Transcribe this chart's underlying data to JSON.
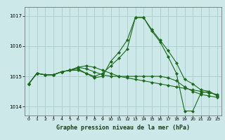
{
  "title": "Graphe pression niveau de la mer (hPa)",
  "background_color": "#cce8e8",
  "grid_color": "#aacccc",
  "line_color": "#1a6b1a",
  "xlim": [
    -0.5,
    23.5
  ],
  "ylim": [
    1013.7,
    1017.3
  ],
  "yticks": [
    1014,
    1015,
    1016,
    1017
  ],
  "xticks": [
    0,
    1,
    2,
    3,
    4,
    5,
    6,
    7,
    8,
    9,
    10,
    11,
    12,
    13,
    14,
    15,
    16,
    17,
    18,
    19,
    20,
    21,
    22,
    23
  ],
  "hours": [
    0,
    1,
    2,
    3,
    4,
    5,
    6,
    7,
    8,
    9,
    10,
    11,
    12,
    13,
    14,
    15,
    16,
    17,
    18,
    19,
    20,
    21,
    22,
    23
  ],
  "series1": [
    1014.75,
    1015.1,
    1015.05,
    1015.05,
    1015.15,
    1015.2,
    1015.25,
    1015.1,
    1014.95,
    1015.0,
    1015.5,
    1015.8,
    1016.2,
    1016.95,
    1016.95,
    1016.5,
    1016.15,
    1015.65,
    1015.1,
    1013.85,
    1013.85,
    1014.45,
    1014.5,
    1014.35
  ],
  "series2": [
    1014.75,
    1015.1,
    1015.05,
    1015.05,
    1015.15,
    1015.2,
    1015.2,
    1015.1,
    1015.0,
    1015.1,
    1015.35,
    1015.6,
    1015.9,
    1016.95,
    1016.95,
    1016.55,
    1016.2,
    1015.85,
    1015.45,
    1014.9,
    1014.75,
    1014.55,
    1014.5,
    1014.35
  ],
  "series3": [
    1014.75,
    1015.1,
    1015.05,
    1015.05,
    1015.15,
    1015.2,
    1015.3,
    1015.25,
    1015.15,
    1015.05,
    1015.0,
    1015.0,
    1015.0,
    1015.0,
    1015.0,
    1015.0,
    1015.0,
    1014.95,
    1014.85,
    1014.65,
    1014.5,
    1014.4,
    1014.35,
    1014.3
  ],
  "series4": [
    1014.75,
    1015.1,
    1015.05,
    1015.05,
    1015.15,
    1015.2,
    1015.3,
    1015.35,
    1015.3,
    1015.2,
    1015.1,
    1015.0,
    1014.95,
    1014.9,
    1014.85,
    1014.8,
    1014.75,
    1014.7,
    1014.65,
    1014.6,
    1014.55,
    1014.5,
    1014.45,
    1014.4
  ]
}
